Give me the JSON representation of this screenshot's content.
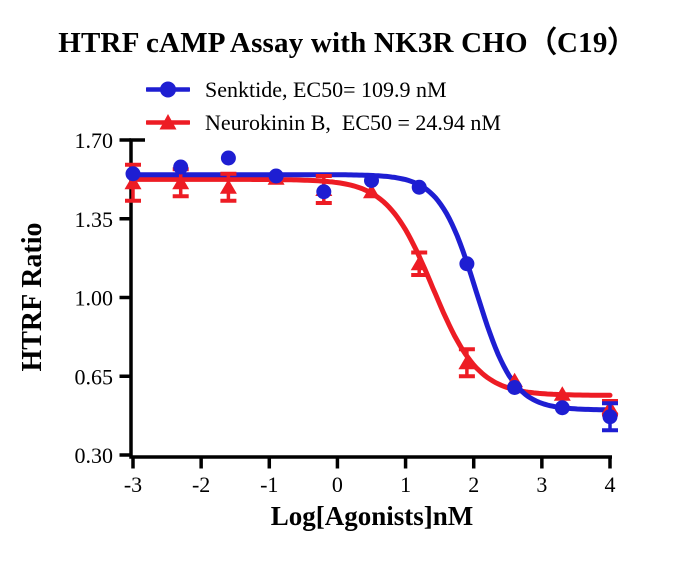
{
  "chart_data": {
    "type": "line",
    "title": "HTRF cAMP Assay with NK3R CHO（C19）",
    "xlabel": "Log[Agonists]nM",
    "ylabel": "HTRF Ratio",
    "xlim": [
      -3,
      4
    ],
    "ylim": [
      0.3,
      1.7
    ],
    "x_ticks": [
      -3,
      -2,
      -1,
      0,
      1,
      2,
      3,
      4
    ],
    "y_ticks": [
      0.3,
      0.65,
      1.0,
      1.35,
      1.7
    ],
    "y_tick_labels": [
      "0.30",
      "0.65",
      "1.00",
      "1.35",
      "1.70"
    ],
    "grid": false,
    "legend_position": "top-left",
    "x": [
      -3,
      -2.3,
      -1.6,
      -0.9,
      -0.2,
      0.5,
      1.2,
      1.9,
      2.6,
      3.3,
      4
    ],
    "series": [
      {
        "name": "Senktide, EC50= 109.9 nM",
        "agonist": "Senktide",
        "ec50_nM": 109.9,
        "color": "#1e1ed2",
        "marker": "circle",
        "values": [
          1.55,
          1.58,
          1.62,
          1.54,
          1.47,
          1.52,
          1.49,
          1.15,
          0.6,
          0.51,
          0.47
        ],
        "errors": [
          0,
          0,
          0,
          0,
          0,
          0,
          0,
          0,
          0,
          0,
          0.06
        ],
        "fit": {
          "top": 1.546,
          "bottom": 0.5,
          "logEC50": 2.041,
          "hill": 1.6
        }
      },
      {
        "name": "Neurokinin B,  EC50 = 24.94 nM",
        "agonist": "Neurokinin B",
        "ec50_nM": 24.94,
        "color": "#ed1c24",
        "marker": "triangle",
        "values": [
          1.51,
          1.51,
          1.49,
          1.53,
          1.48,
          1.47,
          1.15,
          0.71,
          0.63,
          0.57,
          0.51
        ],
        "errors": [
          0.08,
          0.06,
          0.06,
          0,
          0.06,
          0,
          0.05,
          0.06,
          0,
          0,
          0.03
        ],
        "fit": {
          "top": 1.525,
          "bottom": 0.565,
          "logEC50": 1.397,
          "hill": 1.3
        }
      }
    ]
  }
}
